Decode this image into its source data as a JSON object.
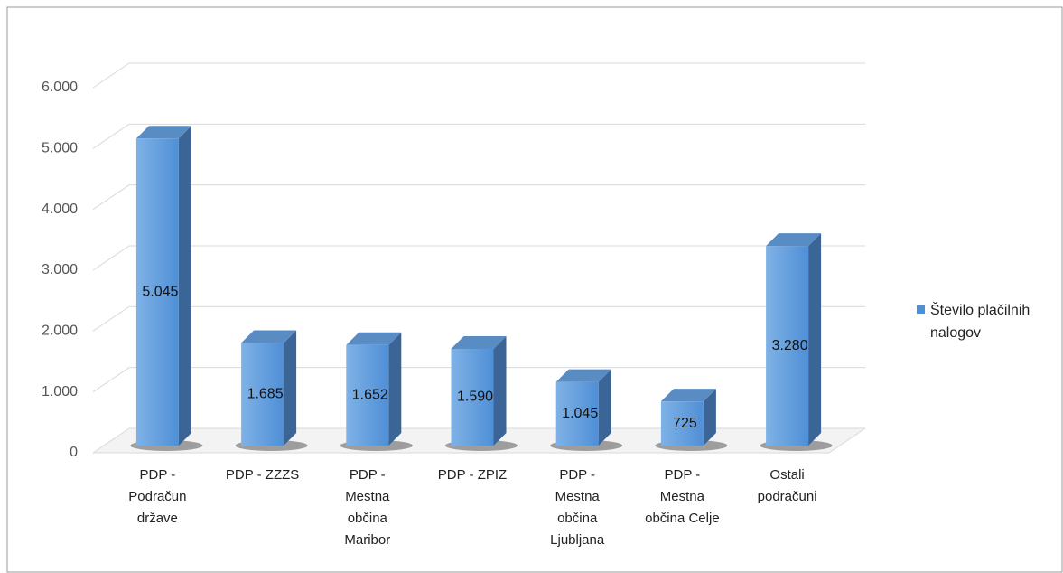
{
  "chart_data": {
    "type": "bar3d",
    "categories": [
      "PDP - Podračun države",
      "PDP - ZZZS",
      "PDP - Mestna občina Maribor",
      "PDP - ZPIZ",
      "PDP - Mestna občina Ljubljana",
      "PDP - Mestna občina Celje",
      "Ostali podračuni"
    ],
    "series": [
      {
        "name": "Število plačilnih nalogov",
        "color": "#4f8fd6",
        "values": [
          5045,
          1685,
          1652,
          1590,
          1045,
          725,
          3280
        ],
        "value_labels": [
          "5.045",
          "1.685",
          "1.652",
          "1.590",
          "1.045",
          "725",
          "3.280"
        ]
      }
    ],
    "ylim": [
      0,
      6000
    ],
    "yticks": [
      0,
      {
        "value": 1000,
        "label": "1.000"
      },
      {
        "value": 2000,
        "label": "2.000"
      },
      {
        "value": 3000,
        "label": "3.000"
      },
      {
        "value": 4000,
        "label": "4.000"
      },
      {
        "value": 5000,
        "label": "5.000"
      },
      {
        "value": 6000,
        "label": "6.000"
      }
    ],
    "grid": true,
    "legend": "right"
  }
}
